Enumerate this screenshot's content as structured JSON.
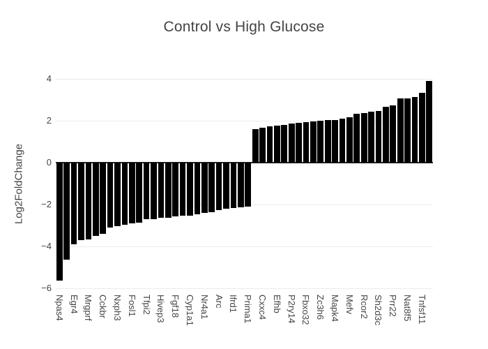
{
  "title": "Control vs High Glucose",
  "colors": {
    "background": "#ffffff",
    "bar": "#000000",
    "gridline": "#ebebeb",
    "zeroline": "#252525",
    "text": "#444444"
  },
  "chart_data": {
    "type": "bar",
    "title": "Control vs High Glucose",
    "xlabel": "",
    "ylabel": "Log2FoldChange",
    "ylim": [
      -6.2,
      4.2
    ],
    "yticks": [
      4,
      2,
      0,
      -2,
      -4,
      -6
    ],
    "grid": true,
    "legend": "none",
    "bar_color": "#000000",
    "tick_label_rotation_deg": 90,
    "note_labeling": "26 category tick labels shown on every other bar (bars 1,3,5,... of 52)",
    "categories": [
      "Npas4",
      "Egr4",
      "Mrgprf",
      "Cckbr",
      "Nxph3",
      "Fosl1",
      "Tfpi2",
      "Hivep3",
      "Fgf18",
      "Cyp1a1",
      "Nr4a1",
      "Arc",
      "Ifrd1",
      "Prima1",
      "Cxxc4",
      "Efhb",
      "P2ry14",
      "Fbxo32",
      "Zc3h6",
      "Mapk4",
      "Mefv",
      "Rcor2",
      "Sh2d3c",
      "Prr22",
      "Nat8f5",
      "Tnfsf11"
    ],
    "tick_bar_indices": [
      0,
      2,
      4,
      6,
      8,
      10,
      12,
      14,
      16,
      18,
      20,
      22,
      24,
      26,
      28,
      30,
      32,
      34,
      36,
      38,
      40,
      42,
      44,
      46,
      48,
      50
    ],
    "values": [
      -5.62,
      -4.62,
      -3.9,
      -3.71,
      -3.65,
      -3.49,
      -3.4,
      -3.11,
      -3.02,
      -2.95,
      -2.91,
      -2.88,
      -2.71,
      -2.69,
      -2.64,
      -2.62,
      -2.55,
      -2.54,
      -2.53,
      -2.48,
      -2.41,
      -2.37,
      -2.26,
      -2.21,
      -2.17,
      -2.14,
      -2.1,
      1.61,
      1.66,
      1.73,
      1.77,
      1.8,
      1.86,
      1.9,
      1.95,
      1.97,
      2.0,
      2.02,
      2.03,
      2.1,
      2.18,
      2.32,
      2.38,
      2.42,
      2.46,
      2.66,
      2.74,
      3.08,
      3.08,
      3.12,
      3.32,
      3.9
    ],
    "labeled_values": {
      "Npas4": -5.62,
      "Egr4": -3.9,
      "Mrgprf": -3.65,
      "Cckbr": -3.4,
      "Nxph3": -3.02,
      "Fosl1": -2.91,
      "Tfpi2": -2.71,
      "Hivep3": -2.64,
      "Fgf18": -2.55,
      "Cyp1a1": -2.53,
      "Nr4a1": -2.41,
      "Arc": -2.26,
      "Ifrd1": -2.17,
      "Prima1": -2.1,
      "Cxxc4": 1.66,
      "Efhb": 1.77,
      "P2ry14": 1.86,
      "Fbxo32": 1.95,
      "Zc3h6": 2.0,
      "Mapk4": 2.03,
      "Mefv": 2.18,
      "Rcor2": 2.38,
      "Sh2d3c": 2.46,
      "Prr22": 2.74,
      "Nat8f5": 3.08,
      "Tnfsf11": 3.32
    }
  }
}
